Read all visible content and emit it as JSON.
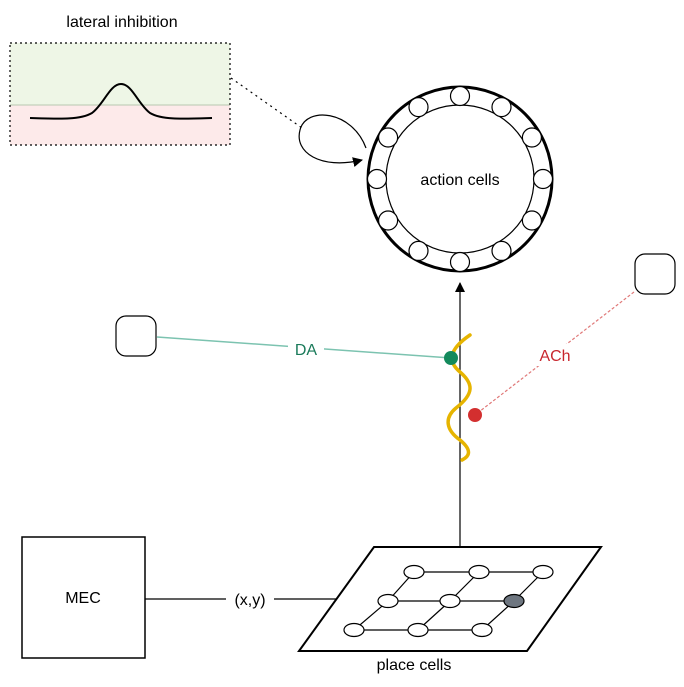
{
  "labels": {
    "lateral_inhibition": "lateral inhibition",
    "action_cells": "action cells",
    "da": "DA",
    "ach": "ACh",
    "mec": "MEC",
    "xy": "(x,y)",
    "place_cells": "place cells"
  },
  "colors": {
    "stroke": "#000000",
    "excitatory_fill": "#eef6e6",
    "inhibitory_fill": "#fdeaea",
    "da_line": "#7cc3b0",
    "da_text": "#1a7a5a",
    "da_dot": "#138a5c",
    "ach_line": "#e07878",
    "ach_text": "#c8272e",
    "ach_dot": "#d32f2f",
    "synapse_wave": "#e6b400",
    "active_place_cell": "#6e7680"
  },
  "icons": {
    "inhibitory_loop": "self-loop-arrow-icon",
    "action_ring": "neuron-ring-icon",
    "place_grid": "place-cell-grid-icon"
  }
}
